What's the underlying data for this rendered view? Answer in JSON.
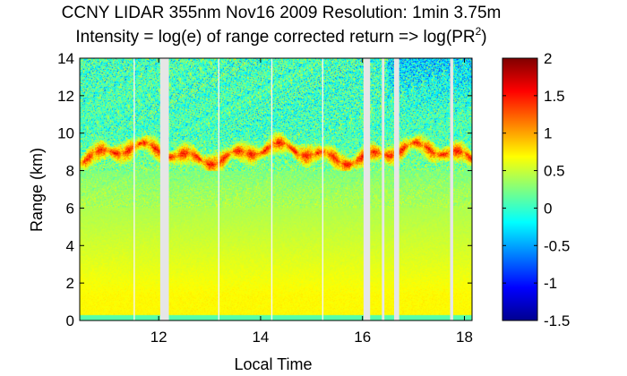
{
  "chart_data": {
    "type": "heatmap",
    "title_line1": "CCNY LIDAR 355nm Nov16 2009 Resolution: 1min 3.75m",
    "title_line2_prefix": "Intensity = log(e) of range corrected return => log(PR",
    "title_line2_sup": "2",
    "title_line2_suffix": ")",
    "xlabel": "Local Time",
    "ylabel": "Range (km)",
    "xlim": [
      10.45,
      18.15
    ],
    "ylim": [
      0,
      14
    ],
    "x_ticks": [
      {
        "value": 12,
        "label": "12"
      },
      {
        "value": 14,
        "label": "14"
      },
      {
        "value": 16,
        "label": "16"
      },
      {
        "value": 18,
        "label": "18"
      }
    ],
    "y_ticks": [
      {
        "value": 0,
        "label": "0"
      },
      {
        "value": 2,
        "label": "2"
      },
      {
        "value": 4,
        "label": "4"
      },
      {
        "value": 6,
        "label": "6"
      },
      {
        "value": 8,
        "label": "8"
      },
      {
        "value": 10,
        "label": "10"
      },
      {
        "value": 12,
        "label": "12"
      },
      {
        "value": 14,
        "label": "14"
      }
    ],
    "colorbar": {
      "colormap": "jet",
      "range": [
        -1.5,
        2
      ],
      "ticks": [
        {
          "value": 2,
          "label": "2"
        },
        {
          "value": 1.5,
          "label": "1.5"
        },
        {
          "value": 1,
          "label": "1"
        },
        {
          "value": 0.5,
          "label": "0.5"
        },
        {
          "value": 0,
          "label": "0"
        },
        {
          "value": -0.5,
          "label": "-0.5"
        },
        {
          "value": -1,
          "label": "-1"
        },
        {
          "value": -1.5,
          "label": "-1.5"
        }
      ]
    },
    "cloud_layer": {
      "base_km": 8.2,
      "top_km": 9.9,
      "intensity": 1.8
    },
    "data_gaps_local_time": [
      {
        "start": 12.03,
        "end": 12.2
      },
      {
        "start": 16.02,
        "end": 16.15
      },
      {
        "start": 16.38,
        "end": 16.43
      },
      {
        "start": 16.62,
        "end": 16.72
      },
      {
        "start": 17.72,
        "end": 17.78
      }
    ],
    "thin_gaps_local_time": [
      11.52,
      13.18,
      14.22,
      15.22
    ],
    "profile_model": {
      "surface_km": 0.3,
      "boundary_layer_top_km": 1.3,
      "boundary_layer_value": 0.7,
      "free_troposphere_value": 0.35,
      "upper_value": 0.05,
      "noise_above_cloud": 0.45
    }
  }
}
